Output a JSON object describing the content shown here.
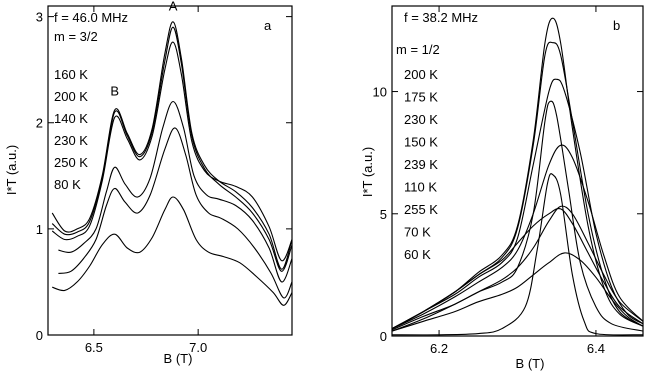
{
  "chart_data": [
    {
      "type": "line",
      "panel_label": "a",
      "freq_text": "f = 46.0 MHz",
      "m_text": "m = 3/2",
      "xlabel": "B (T)",
      "ylabel": "I*T (a.u.)",
      "xlim": [
        6.28,
        7.45
      ],
      "ylim": [
        0,
        3.1
      ],
      "xticks": [
        6.5,
        7.0
      ],
      "xtick_labels": [
        "6.5",
        "7.0"
      ],
      "yticks": [
        0,
        1,
        2,
        3
      ],
      "ytick_labels": [
        "0",
        "1",
        "2",
        "3"
      ],
      "peak_labels": [
        {
          "text": "A",
          "x": 6.88,
          "y": 3.02
        },
        {
          "text": "B",
          "x": 6.6,
          "y": 2.22
        }
      ],
      "legend": [
        "160 K",
        "200 K",
        "140 K",
        "230 K",
        "250 K",
        "80 K"
      ],
      "series": [
        {
          "points": [
            [
              6.3,
              1.15
            ],
            [
              6.36,
              0.98
            ],
            [
              6.42,
              1.0
            ],
            [
              6.48,
              1.1
            ],
            [
              6.54,
              1.5
            ],
            [
              6.6,
              2.12
            ],
            [
              6.66,
              1.9
            ],
            [
              6.72,
              1.7
            ],
            [
              6.78,
              1.95
            ],
            [
              6.84,
              2.65
            ],
            [
              6.88,
              2.95
            ],
            [
              6.92,
              2.6
            ],
            [
              6.97,
              1.9
            ],
            [
              7.03,
              1.6
            ],
            [
              7.1,
              1.45
            ],
            [
              7.18,
              1.35
            ],
            [
              7.26,
              1.2
            ],
            [
              7.34,
              0.95
            ],
            [
              7.4,
              0.62
            ],
            [
              7.45,
              0.9
            ]
          ]
        },
        {
          "points": [
            [
              6.3,
              1.05
            ],
            [
              6.36,
              0.95
            ],
            [
              6.42,
              0.97
            ],
            [
              6.48,
              1.07
            ],
            [
              6.54,
              1.48
            ],
            [
              6.6,
              2.1
            ],
            [
              6.66,
              1.88
            ],
            [
              6.72,
              1.68
            ],
            [
              6.78,
              1.92
            ],
            [
              6.84,
              2.58
            ],
            [
              6.88,
              2.9
            ],
            [
              6.92,
              2.55
            ],
            [
              6.97,
              1.87
            ],
            [
              7.03,
              1.57
            ],
            [
              7.1,
              1.42
            ],
            [
              7.18,
              1.3
            ],
            [
              7.26,
              1.15
            ],
            [
              7.34,
              0.9
            ],
            [
              7.4,
              0.6
            ],
            [
              7.45,
              0.85
            ]
          ]
        },
        {
          "points": [
            [
              6.3,
              0.98
            ],
            [
              6.36,
              0.9
            ],
            [
              6.42,
              0.93
            ],
            [
              6.48,
              1.03
            ],
            [
              6.54,
              1.45
            ],
            [
              6.6,
              2.05
            ],
            [
              6.66,
              1.85
            ],
            [
              6.72,
              1.65
            ],
            [
              6.78,
              1.88
            ],
            [
              6.84,
              2.5
            ],
            [
              6.88,
              2.76
            ],
            [
              6.92,
              2.45
            ],
            [
              6.97,
              1.82
            ],
            [
              7.03,
              1.55
            ],
            [
              7.1,
              1.45
            ],
            [
              7.18,
              1.4
            ],
            [
              7.26,
              1.3
            ],
            [
              7.34,
              1.02
            ],
            [
              7.4,
              0.7
            ],
            [
              7.45,
              0.9
            ]
          ]
        },
        {
          "points": [
            [
              6.33,
              0.8
            ],
            [
              6.39,
              0.78
            ],
            [
              6.45,
              0.86
            ],
            [
              6.51,
              1.0
            ],
            [
              6.56,
              1.35
            ],
            [
              6.6,
              1.58
            ],
            [
              6.65,
              1.42
            ],
            [
              6.71,
              1.3
            ],
            [
              6.77,
              1.48
            ],
            [
              6.83,
              1.95
            ],
            [
              6.88,
              2.2
            ],
            [
              6.93,
              1.95
            ],
            [
              6.98,
              1.5
            ],
            [
              7.04,
              1.32
            ],
            [
              7.1,
              1.28
            ],
            [
              7.18,
              1.22
            ],
            [
              7.26,
              1.08
            ],
            [
              7.34,
              0.82
            ],
            [
              7.4,
              0.5
            ],
            [
              7.45,
              0.72
            ]
          ]
        },
        {
          "points": [
            [
              6.33,
              0.58
            ],
            [
              6.39,
              0.6
            ],
            [
              6.45,
              0.72
            ],
            [
              6.51,
              0.9
            ],
            [
              6.56,
              1.22
            ],
            [
              6.6,
              1.38
            ],
            [
              6.65,
              1.25
            ],
            [
              6.71,
              1.15
            ],
            [
              6.77,
              1.32
            ],
            [
              6.84,
              1.75
            ],
            [
              6.89,
              1.95
            ],
            [
              6.94,
              1.7
            ],
            [
              6.99,
              1.32
            ],
            [
              7.05,
              1.15
            ],
            [
              7.11,
              1.1
            ],
            [
              7.19,
              1.0
            ],
            [
              7.27,
              0.82
            ],
            [
              7.35,
              0.58
            ],
            [
              7.41,
              0.35
            ],
            [
              7.45,
              0.5
            ]
          ]
        },
        {
          "points": [
            [
              6.3,
              0.45
            ],
            [
              6.36,
              0.42
            ],
            [
              6.42,
              0.5
            ],
            [
              6.48,
              0.65
            ],
            [
              6.54,
              0.85
            ],
            [
              6.6,
              0.95
            ],
            [
              6.66,
              0.82
            ],
            [
              6.72,
              0.78
            ],
            [
              6.78,
              0.92
            ],
            [
              6.84,
              1.18
            ],
            [
              6.88,
              1.3
            ],
            [
              6.93,
              1.18
            ],
            [
              6.99,
              0.9
            ],
            [
              7.05,
              0.78
            ],
            [
              7.12,
              0.74
            ],
            [
              7.2,
              0.68
            ],
            [
              7.28,
              0.55
            ],
            [
              7.36,
              0.4
            ],
            [
              7.41,
              0.28
            ],
            [
              7.45,
              0.4
            ]
          ]
        }
      ]
    },
    {
      "type": "line",
      "panel_label": "b",
      "freq_text": "f = 38.2 MHz",
      "m_text": "m = 1/2",
      "xlabel": "B (T)",
      "ylabel": "I*T (a.u.)",
      "xlim": [
        6.14,
        6.46
      ],
      "ylim": [
        0,
        13.5
      ],
      "xticks": [
        6.2,
        6.4
      ],
      "xtick_labels": [
        "6.2",
        "6.4"
      ],
      "yticks": [
        0,
        5,
        10
      ],
      "ytick_labels": [
        "0",
        "5",
        "10"
      ],
      "legend": [
        "200 K",
        "175 K",
        "230 K",
        "150 K",
        "239 K",
        "110 K",
        "255 K",
        "70 K",
        "60 K"
      ],
      "series": [
        {
          "points": [
            [
              6.14,
              0.3
            ],
            [
              6.18,
              1.0
            ],
            [
              6.22,
              1.8
            ],
            [
              6.25,
              2.6
            ],
            [
              6.28,
              3.3
            ],
            [
              6.3,
              4.5
            ],
            [
              6.32,
              8.0
            ],
            [
              6.335,
              12.0
            ],
            [
              6.345,
              13.0
            ],
            [
              6.355,
              12.0
            ],
            [
              6.37,
              8.5
            ],
            [
              6.39,
              4.5
            ],
            [
              6.41,
              2.0
            ],
            [
              6.43,
              0.9
            ],
            [
              6.46,
              0.4
            ]
          ]
        },
        {
          "points": [
            [
              6.14,
              0.3
            ],
            [
              6.18,
              1.0
            ],
            [
              6.22,
              1.8
            ],
            [
              6.25,
              2.5
            ],
            [
              6.28,
              3.2
            ],
            [
              6.3,
              4.4
            ],
            [
              6.32,
              7.8
            ],
            [
              6.335,
              11.5
            ],
            [
              6.345,
              12.0
            ],
            [
              6.355,
              11.5
            ],
            [
              6.37,
              8.8
            ],
            [
              6.39,
              5.0
            ],
            [
              6.41,
              2.4
            ],
            [
              6.43,
              1.0
            ],
            [
              6.46,
              0.4
            ]
          ]
        },
        {
          "points": [
            [
              6.14,
              0.3
            ],
            [
              6.18,
              1.0
            ],
            [
              6.22,
              1.7
            ],
            [
              6.25,
              2.4
            ],
            [
              6.28,
              3.0
            ],
            [
              6.3,
              4.0
            ],
            [
              6.32,
              7.0
            ],
            [
              6.34,
              10.0
            ],
            [
              6.35,
              10.5
            ],
            [
              6.36,
              10.0
            ],
            [
              6.38,
              7.5
            ],
            [
              6.4,
              4.2
            ],
            [
              6.42,
              2.0
            ],
            [
              6.44,
              0.9
            ],
            [
              6.46,
              0.5
            ]
          ]
        },
        {
          "points": [
            [
              6.14,
              0.25
            ],
            [
              6.18,
              0.8
            ],
            [
              6.22,
              1.3
            ],
            [
              6.25,
              1.8
            ],
            [
              6.28,
              2.2
            ],
            [
              6.3,
              2.8
            ],
            [
              6.32,
              5.0
            ],
            [
              6.335,
              8.8
            ],
            [
              6.342,
              9.6
            ],
            [
              6.35,
              9.0
            ],
            [
              6.365,
              6.0
            ],
            [
              6.38,
              3.0
            ],
            [
              6.4,
              1.2
            ],
            [
              6.42,
              0.5
            ],
            [
              6.46,
              0.2
            ]
          ]
        },
        {
          "points": [
            [
              6.14,
              0.3
            ],
            [
              6.18,
              0.9
            ],
            [
              6.22,
              1.6
            ],
            [
              6.25,
              2.2
            ],
            [
              6.28,
              2.8
            ],
            [
              6.3,
              3.5
            ],
            [
              6.32,
              5.0
            ],
            [
              6.34,
              7.0
            ],
            [
              6.355,
              7.8
            ],
            [
              6.37,
              7.3
            ],
            [
              6.39,
              5.5
            ],
            [
              6.41,
              3.3
            ],
            [
              6.43,
              1.6
            ],
            [
              6.46,
              0.6
            ]
          ]
        },
        {
          "points": [
            [
              6.14,
              0.05
            ],
            [
              6.2,
              0.05
            ],
            [
              6.25,
              0.1
            ],
            [
              6.28,
              0.3
            ],
            [
              6.31,
              1.2
            ],
            [
              6.325,
              3.5
            ],
            [
              6.338,
              6.2
            ],
            [
              6.345,
              6.6
            ],
            [
              6.355,
              5.8
            ],
            [
              6.37,
              2.5
            ],
            [
              6.385,
              0.6
            ],
            [
              6.4,
              0.1
            ],
            [
              6.46,
              0.05
            ]
          ]
        },
        {
          "points": [
            [
              6.14,
              0.2
            ],
            [
              6.18,
              0.7
            ],
            [
              6.22,
              1.3
            ],
            [
              6.25,
              1.8
            ],
            [
              6.28,
              2.3
            ],
            [
              6.3,
              2.8
            ],
            [
              6.32,
              3.6
            ],
            [
              6.34,
              4.7
            ],
            [
              6.355,
              5.3
            ],
            [
              6.37,
              5.0
            ],
            [
              6.39,
              3.8
            ],
            [
              6.41,
              2.5
            ],
            [
              6.43,
              1.4
            ],
            [
              6.46,
              0.6
            ]
          ]
        },
        {
          "points": [
            [
              6.14,
              0.3
            ],
            [
              6.18,
              1.0
            ],
            [
              6.22,
              1.8
            ],
            [
              6.25,
              2.5
            ],
            [
              6.28,
              3.1
            ],
            [
              6.3,
              3.8
            ],
            [
              6.32,
              4.5
            ],
            [
              6.34,
              5.0
            ],
            [
              6.355,
              5.2
            ],
            [
              6.37,
              4.6
            ],
            [
              6.39,
              3.4
            ],
            [
              6.41,
              2.2
            ],
            [
              6.43,
              1.2
            ],
            [
              6.46,
              0.5
            ]
          ]
        },
        {
          "points": [
            [
              6.14,
              0.2
            ],
            [
              6.18,
              0.6
            ],
            [
              6.22,
              1.0
            ],
            [
              6.25,
              1.4
            ],
            [
              6.28,
              1.7
            ],
            [
              6.3,
              2.0
            ],
            [
              6.32,
              2.5
            ],
            [
              6.34,
              3.0
            ],
            [
              6.36,
              3.4
            ],
            [
              6.38,
              3.1
            ],
            [
              6.4,
              2.4
            ],
            [
              6.42,
              1.5
            ],
            [
              6.44,
              0.8
            ],
            [
              6.46,
              0.4
            ]
          ]
        }
      ]
    }
  ]
}
